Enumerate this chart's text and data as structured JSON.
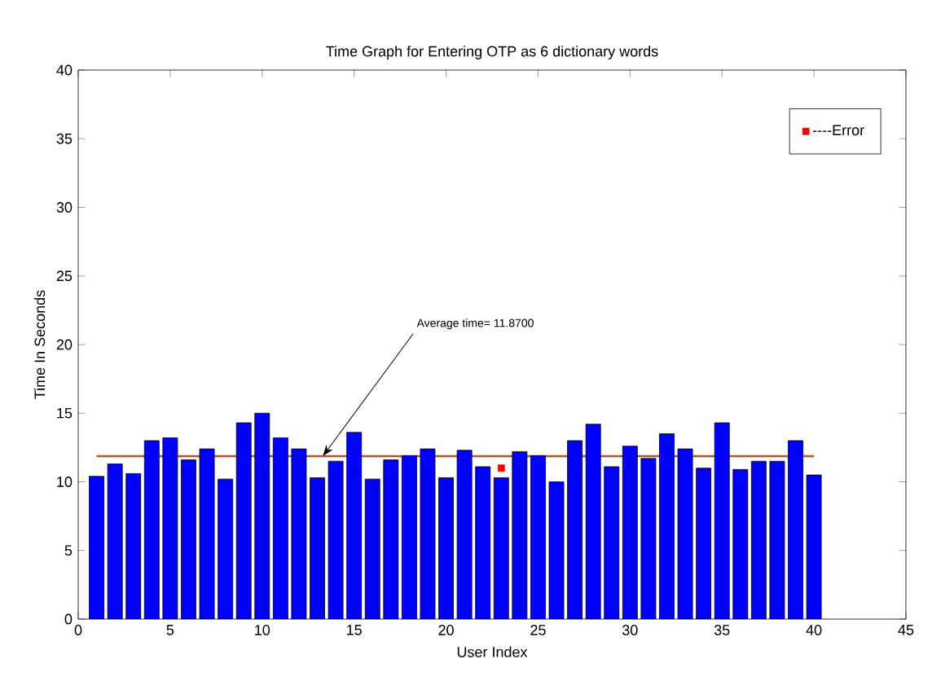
{
  "chart_data": {
    "type": "bar",
    "title": "Time Graph for Entering OTP as 6 dictionary words",
    "xlabel": "User Index",
    "ylabel": "Time In Seconds",
    "x": [
      1,
      2,
      3,
      4,
      5,
      6,
      7,
      8,
      9,
      10,
      11,
      12,
      13,
      14,
      15,
      16,
      17,
      18,
      19,
      20,
      21,
      22,
      23,
      24,
      25,
      26,
      27,
      28,
      29,
      30,
      31,
      32,
      33,
      34,
      35,
      36,
      37,
      38,
      39,
      40
    ],
    "series": [
      {
        "color": "#0000ff",
        "values": [
          10.4,
          11.3,
          10.6,
          13.0,
          13.2,
          11.6,
          12.4,
          10.2,
          14.3,
          15.0,
          13.2,
          12.4,
          10.3,
          11.5,
          13.6,
          10.2,
          11.6,
          11.9,
          12.4,
          10.3,
          12.3,
          11.1,
          10.3,
          12.2,
          11.9,
          10.0,
          13.0,
          14.2,
          11.1,
          12.6,
          11.7,
          13.5,
          12.4,
          11.0,
          14.3,
          10.9,
          11.5,
          11.5,
          13.0,
          10.5
        ]
      },
      {
        "type": "scatter",
        "name": "----Error",
        "color": "#ff0000",
        "marker": "square",
        "x": [
          23
        ],
        "values": [
          11.0
        ]
      }
    ],
    "ref_lines": [
      {
        "axis": "y",
        "value": 11.87,
        "color": "#b05a2a"
      }
    ],
    "annotations": [
      {
        "text": "Average time= 11.8700",
        "x": 13.3,
        "y": 11.87
      }
    ],
    "xlim": [
      0,
      45
    ],
    "xticks": [
      0,
      5,
      10,
      15,
      20,
      25,
      30,
      35,
      40,
      45
    ],
    "ylim": [
      0,
      40
    ],
    "yticks": [
      0,
      5,
      10,
      15,
      20,
      25,
      30,
      35,
      40
    ],
    "legend": "top right",
    "grid": false
  }
}
